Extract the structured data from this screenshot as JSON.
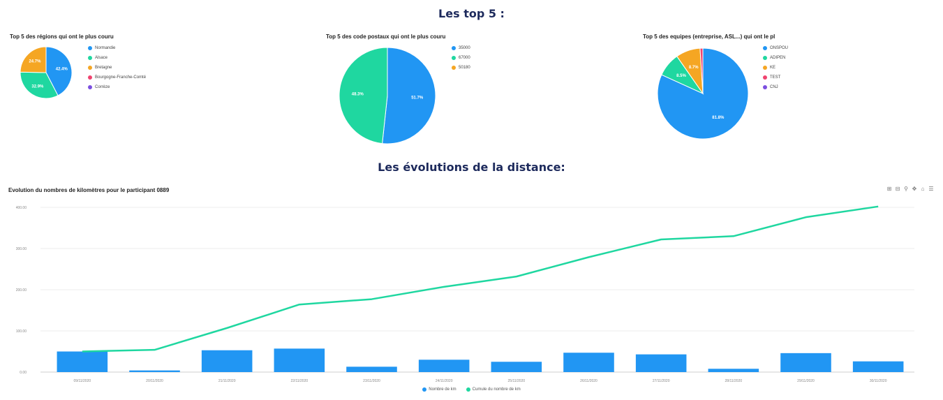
{
  "page": {
    "title_top": "Les top 5 :",
    "title_evolution": "Les évolutions de la distance:"
  },
  "chart_data": [
    {
      "type": "pie",
      "title": "Top 5 des régions qui ont le plus couru",
      "labels": [
        "Normandie",
        "Alsace",
        "Bretagne",
        "Bourgogne-Franche-Comté",
        "Corrèze"
      ],
      "values": [
        42.4,
        32.9,
        24.7,
        0,
        0
      ],
      "data_labels": [
        "42.4%",
        "32.9%",
        "24.7%",
        "",
        ""
      ],
      "colors": [
        "#2196f3",
        "#1fd7a0",
        "#f5a623",
        "#f0436f",
        "#7b4fe0"
      ],
      "legend": "right"
    },
    {
      "type": "pie",
      "title": "Top 5 des code postaux qui ont le plus couru",
      "labels": [
        "35000",
        "67000",
        "50180"
      ],
      "values": [
        51.7,
        48.3,
        0
      ],
      "data_labels": [
        "51.7%",
        "48.3%",
        ""
      ],
      "colors": [
        "#2196f3",
        "#1fd7a0",
        "#f5a623"
      ],
      "legend": "right"
    },
    {
      "type": "pie",
      "title": "Top 5 des equipes (entreprise, ASL...) qui ont le pl",
      "labels": [
        "ONSPOU",
        "ADIPEN",
        "KE",
        "TEST",
        "CNJ"
      ],
      "values": [
        81.8,
        8.5,
        8.7,
        1.0,
        0
      ],
      "data_labels": [
        "81.8%",
        "8.5%",
        "8.7%",
        "",
        ""
      ],
      "colors": [
        "#2196f3",
        "#1fd7a0",
        "#f5a623",
        "#f0436f",
        "#7b4fe0"
      ],
      "legend": "right"
    },
    {
      "type": "bar",
      "title": "Evolution du nombres de kilomètres pour le participant 0889",
      "categories": [
        "09/11/2020",
        "20/11/2020",
        "21/11/2020",
        "22/11/2020",
        "23/11/2020",
        "24/11/2020",
        "25/11/2020",
        "26/11/2020",
        "27/11/2020",
        "28/11/2020",
        "29/11/2020",
        "30/11/2020"
      ],
      "series": [
        {
          "name": "Nombre de km",
          "type": "bar",
          "values": [
            50,
            4,
            53,
            57,
            13,
            30,
            25,
            47,
            43,
            8,
            46,
            26
          ]
        },
        {
          "name": "Cumule du nombre de km",
          "type": "line",
          "values": [
            50,
            54,
            107,
            164,
            177,
            207,
            232,
            279,
            322,
            330,
            376,
            402
          ]
        }
      ],
      "ylim": [
        0,
        400
      ],
      "yticks": [
        "0.00",
        "100.00",
        "200.00",
        "300.00",
        "400.00"
      ],
      "colors": {
        "bar": "#2196f3",
        "line": "#1fd7a0"
      },
      "grid": true,
      "legend": "bottom"
    }
  ]
}
